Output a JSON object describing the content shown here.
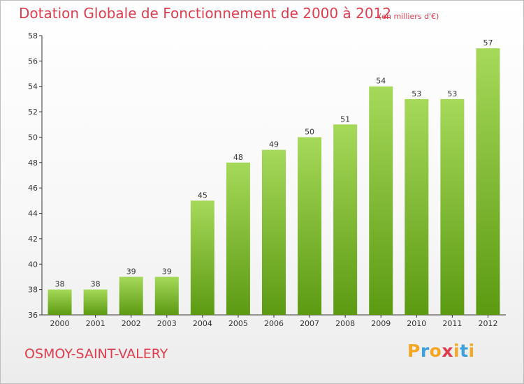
{
  "title": "Dotation Globale de Fonctionnement de 2000 à 2012",
  "unit_note": "(en milliers d'€)",
  "commune": "OSMOY-SAINT-VALERY",
  "logo": {
    "letters": [
      "P",
      "r",
      "o",
      "x",
      "i",
      "t",
      "i"
    ],
    "colors": [
      "#f5a623",
      "#3ea0dc",
      "#f5a623",
      "#e03c4e",
      "#f5a623",
      "#3ea0dc",
      "#f5a623"
    ]
  },
  "colors": {
    "bar_top": "#a6d95a",
    "bar_bottom": "#5c9a12",
    "title": "#e03c4e",
    "axis": "#333333"
  },
  "chart_data": {
    "type": "bar",
    "title": "Dotation Globale de Fonctionnement de 2000 à 2012",
    "ylabel": "(en milliers d'€)",
    "categories": [
      "2000",
      "2001",
      "2002",
      "2003",
      "2004",
      "2005",
      "2006",
      "2007",
      "2008",
      "2009",
      "2010",
      "2011",
      "2012"
    ],
    "values": [
      38,
      38,
      39,
      39,
      45,
      48,
      49,
      50,
      51,
      54,
      53,
      53,
      57
    ],
    "ylim": [
      36,
      58
    ],
    "yticks": [
      36,
      38,
      40,
      42,
      44,
      46,
      48,
      50,
      52,
      54,
      56,
      58
    ],
    "grid": false,
    "legend": "none"
  }
}
